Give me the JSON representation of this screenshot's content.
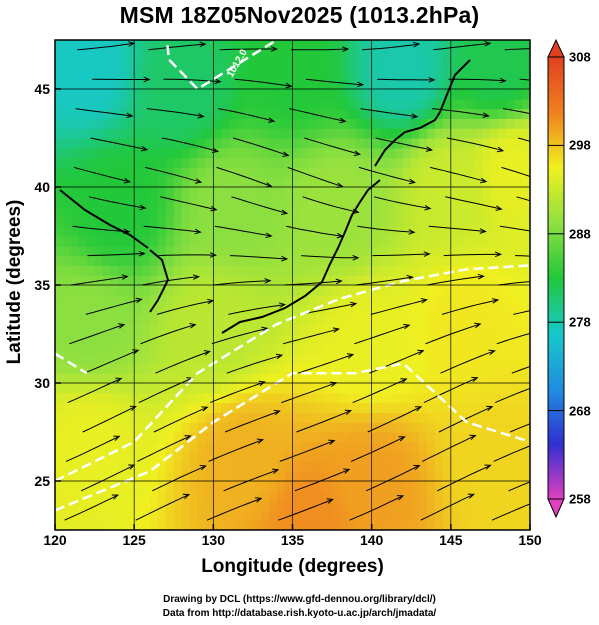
{
  "title": "MSM 18Z05Nov2025 (1013.2hPa)",
  "x_axis_label": "Longitude (degrees)",
  "y_axis_label": "Latitude  (degrees)",
  "x_ticks": [
    "120",
    "125",
    "130",
    "135",
    "140",
    "145",
    "150"
  ],
  "y_ticks": [
    "25",
    "30",
    "35",
    "40",
    "45"
  ],
  "colorbar": {
    "labels": [
      "258",
      "268",
      "278",
      "288",
      "298",
      "308"
    ],
    "colors": [
      "#e040c0",
      "#3030d0",
      "#1f8fe0",
      "#18c8c8",
      "#22c83a",
      "#90e040",
      "#f0f020",
      "#f08020",
      "#e04020"
    ]
  },
  "contour_label": "1012.0",
  "credits": [
    "Drawing by DCL (https://www.gfd-dennou.org/library/dcl/)",
    "Data from http://database.rish.kyoto-u.ac.jp/arch/jmadata/"
  ],
  "chart_data": {
    "type": "heatmap",
    "variable": "surface temperature with surface wind streamlines",
    "xlim": [
      120,
      150
    ],
    "ylim": [
      22.5,
      47.5
    ],
    "color_range": [
      258,
      308
    ],
    "field_points": [
      {
        "lon": 122,
        "lat": 46,
        "value": 277
      },
      {
        "lon": 128,
        "lat": 45,
        "value": 281
      },
      {
        "lon": 135,
        "lat": 46,
        "value": 283
      },
      {
        "lon": 142,
        "lat": 46,
        "value": 278
      },
      {
        "lon": 148,
        "lat": 46,
        "value": 282
      },
      {
        "lon": 124,
        "lat": 39,
        "value": 283
      },
      {
        "lon": 131,
        "lat": 39,
        "value": 289
      },
      {
        "lon": 138,
        "lat": 39,
        "value": 290
      },
      {
        "lon": 145,
        "lat": 40,
        "value": 293
      },
      {
        "lon": 149,
        "lat": 41,
        "value": 295
      },
      {
        "lon": 122,
        "lat": 33,
        "value": 289
      },
      {
        "lon": 130,
        "lat": 33,
        "value": 292
      },
      {
        "lon": 140,
        "lat": 32,
        "value": 295
      },
      {
        "lon": 146,
        "lat": 33,
        "value": 296
      },
      {
        "lon": 122,
        "lat": 27,
        "value": 295
      },
      {
        "lon": 132,
        "lat": 26,
        "value": 299
      },
      {
        "lon": 140,
        "lat": 25,
        "value": 300
      },
      {
        "lon": 148,
        "lat": 26,
        "value": 297
      },
      {
        "lon": 136,
        "lat": 23,
        "value": 301
      }
    ],
    "contours": [
      {
        "label": "1012.0",
        "points": [
          [
            127,
            48
          ],
          [
            127.2,
            46.5
          ],
          [
            129,
            45
          ],
          [
            131,
            46
          ],
          [
            133,
            47
          ],
          [
            135,
            48
          ]
        ]
      },
      {
        "points": [
          [
            120,
            25
          ],
          [
            125,
            27
          ],
          [
            129,
            30.5
          ],
          [
            134,
            33
          ],
          [
            138,
            34.3
          ],
          [
            142,
            35.2
          ],
          [
            146,
            35.8
          ],
          [
            150,
            36
          ]
        ]
      },
      {
        "points": [
          [
            120,
            23.5
          ],
          [
            126,
            25.5
          ],
          [
            130,
            28
          ],
          [
            135,
            30.5
          ],
          [
            139,
            30.5
          ],
          [
            142,
            31
          ],
          [
            144,
            29.5
          ],
          [
            146,
            28
          ],
          [
            148,
            27.5
          ],
          [
            150,
            27
          ]
        ]
      },
      {
        "points": [
          [
            120,
            31.5
          ],
          [
            121,
            31
          ],
          [
            122,
            30.5
          ]
        ]
      }
    ]
  }
}
